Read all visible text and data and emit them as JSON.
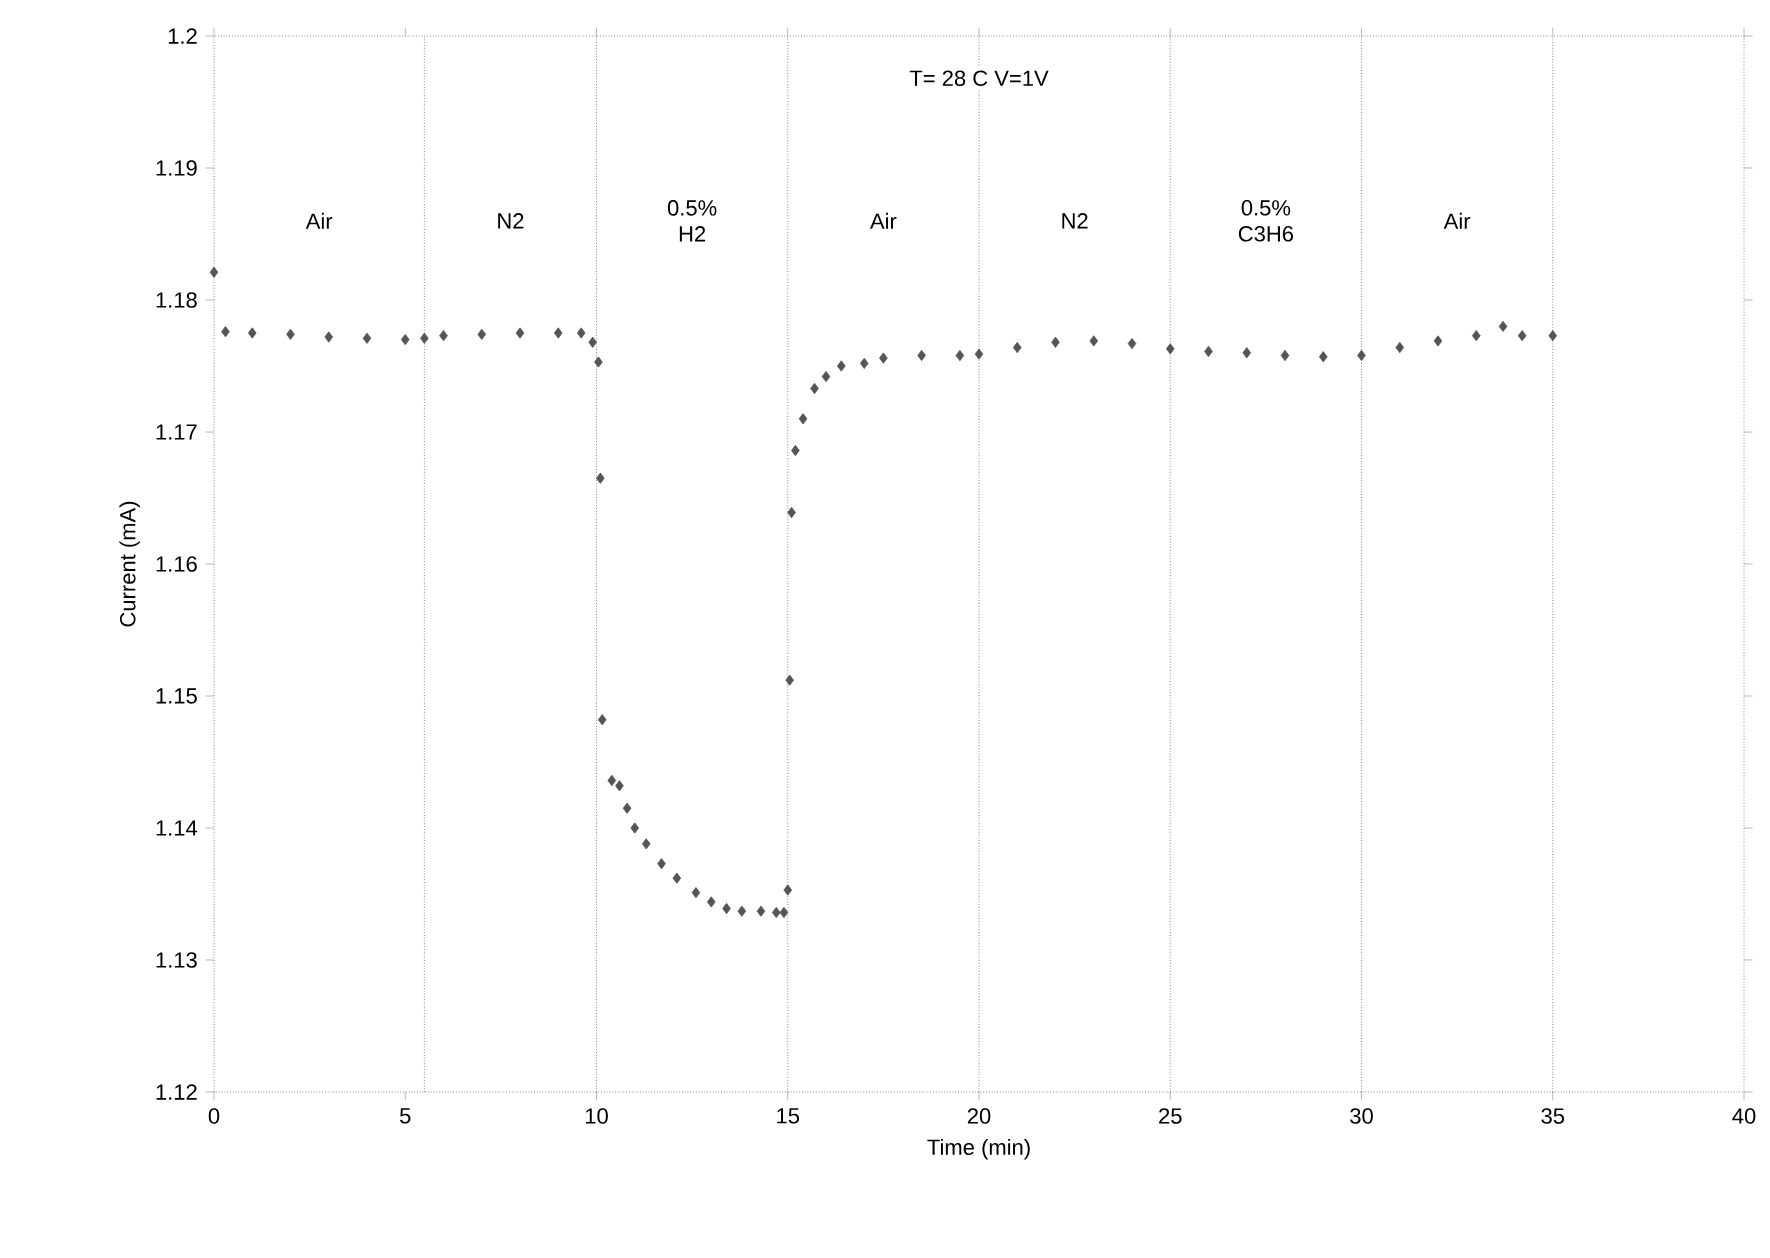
{
  "chart_data": {
    "type": "scatter",
    "title": "T= 28 C  V=1V",
    "xlabel": "Time (min)",
    "ylabel": "Current (mA)",
    "x": [
      0,
      0.3,
      1,
      2,
      3,
      4,
      5,
      5.5,
      6,
      7,
      8,
      9,
      9.6,
      9.9,
      10.05,
      10.1,
      10.15,
      10.4,
      10.6,
      10.8,
      11.0,
      11.3,
      11.7,
      12.1,
      12.6,
      13.0,
      13.4,
      13.8,
      14.3,
      14.7,
      14.9,
      15.0,
      15.05,
      15.1,
      15.2,
      15.4,
      15.7,
      16.0,
      16.4,
      17.0,
      17.5,
      18.5,
      19.5,
      20,
      21,
      22,
      23,
      24,
      25,
      26,
      27,
      28,
      29,
      30,
      31,
      32,
      33,
      33.7,
      34.2,
      35
    ],
    "series": [
      {
        "color": "#555555",
        "values": [
          1.1821,
          1.1776,
          1.1775,
          1.1774,
          1.1772,
          1.1771,
          1.177,
          1.1771,
          1.1773,
          1.1774,
          1.1775,
          1.1775,
          1.1775,
          1.1768,
          1.1753,
          1.1665,
          1.1482,
          1.1436,
          1.1432,
          1.1415,
          1.14,
          1.1388,
          1.1373,
          1.1362,
          1.1351,
          1.1344,
          1.1339,
          1.1337,
          1.1337,
          1.1336,
          1.1336,
          1.1353,
          1.1512,
          1.1639,
          1.1686,
          1.171,
          1.1733,
          1.1742,
          1.175,
          1.1752,
          1.1756,
          1.1758,
          1.1758,
          1.1759,
          1.1764,
          1.1768,
          1.1769,
          1.1767,
          1.1763,
          1.1761,
          1.176,
          1.1758,
          1.1757,
          1.1758,
          1.1764,
          1.1769,
          1.1773,
          1.178,
          1.1773,
          1.1773
        ]
      }
    ],
    "marker": "diamond",
    "xlim": [
      0,
      40
    ],
    "xticks": [
      0,
      5,
      10,
      15,
      20,
      25,
      30,
      35,
      40
    ],
    "ylim": [
      1.12,
      1.2
    ],
    "yticks": [
      1.12,
      1.13,
      1.14,
      1.15,
      1.16,
      1.17,
      1.18,
      1.19,
      1.2
    ],
    "ref_lines": [
      {
        "axis": "x",
        "value": 5.5,
        "line_style": "dotted"
      },
      {
        "axis": "x",
        "value": 10,
        "line_style": "dotted"
      },
      {
        "axis": "x",
        "value": 15,
        "line_style": "dotted"
      },
      {
        "axis": "x",
        "value": 20,
        "line_style": "dotted"
      },
      {
        "axis": "x",
        "value": 25,
        "line_style": "dotted"
      },
      {
        "axis": "x",
        "value": 30,
        "line_style": "dotted"
      },
      {
        "axis": "x",
        "value": 35,
        "line_style": "dotted"
      }
    ],
    "annotations": [
      {
        "text": "Air",
        "x": 2.75,
        "y": 1.186
      },
      {
        "text": "N2",
        "x": 7.75,
        "y": 1.186
      },
      {
        "text": "0.5% H2",
        "x": 12.5,
        "y": 1.186
      },
      {
        "text": "Air",
        "x": 17.5,
        "y": 1.186
      },
      {
        "text": "N2",
        "x": 22.5,
        "y": 1.186
      },
      {
        "text": "0.5% C3H6",
        "x": 27.5,
        "y": 1.186
      },
      {
        "text": "Air",
        "x": 32.5,
        "y": 1.186
      }
    ]
  }
}
